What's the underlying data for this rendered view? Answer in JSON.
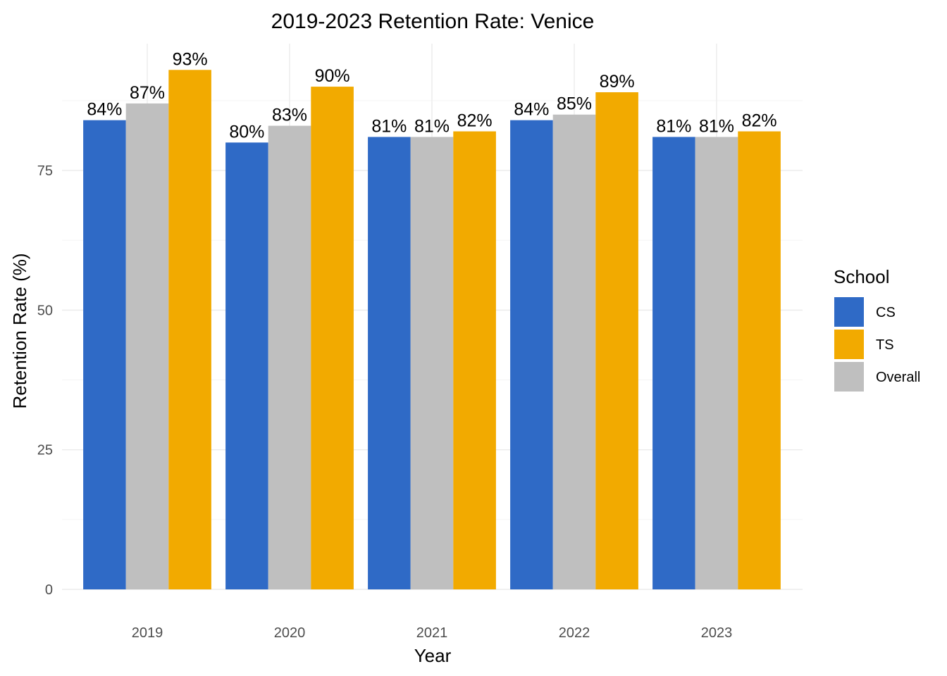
{
  "chart_data": {
    "type": "bar",
    "title": "2019-2023 Retention Rate: Venice",
    "xlabel": "Year",
    "ylabel": "Retention Rate (%)",
    "categories": [
      "2019",
      "2020",
      "2021",
      "2022",
      "2023"
    ],
    "series": [
      {
        "name": "CS",
        "color": "#2f6ac6",
        "values": [
          84,
          80,
          81,
          84,
          81
        ],
        "labels": [
          "84%",
          "80%",
          "81%",
          "84%",
          "81%"
        ]
      },
      {
        "name": "Overall",
        "color": "#bfbfbf",
        "values": [
          87,
          83,
          81,
          85,
          81
        ],
        "labels": [
          "87%",
          "83%",
          "81%",
          "85%",
          "81%"
        ]
      },
      {
        "name": "TS",
        "color": "#f2aa00",
        "values": [
          93,
          90,
          82,
          89,
          82
        ],
        "labels": [
          "93%",
          "90%",
          "82%",
          "89%",
          "82%"
        ]
      }
    ],
    "ylim": [
      0,
      97.7
    ],
    "yticks": [
      0,
      25,
      50,
      75
    ],
    "ytick_labels": [
      "0",
      "25",
      "50",
      "75"
    ],
    "grid": true,
    "legend": {
      "title": "School",
      "position": "right",
      "entries": [
        {
          "label": "CS",
          "color": "#2f6ac6"
        },
        {
          "label": "TS",
          "color": "#f2aa00"
        },
        {
          "label": "Overall",
          "color": "#bfbfbf"
        }
      ]
    }
  }
}
